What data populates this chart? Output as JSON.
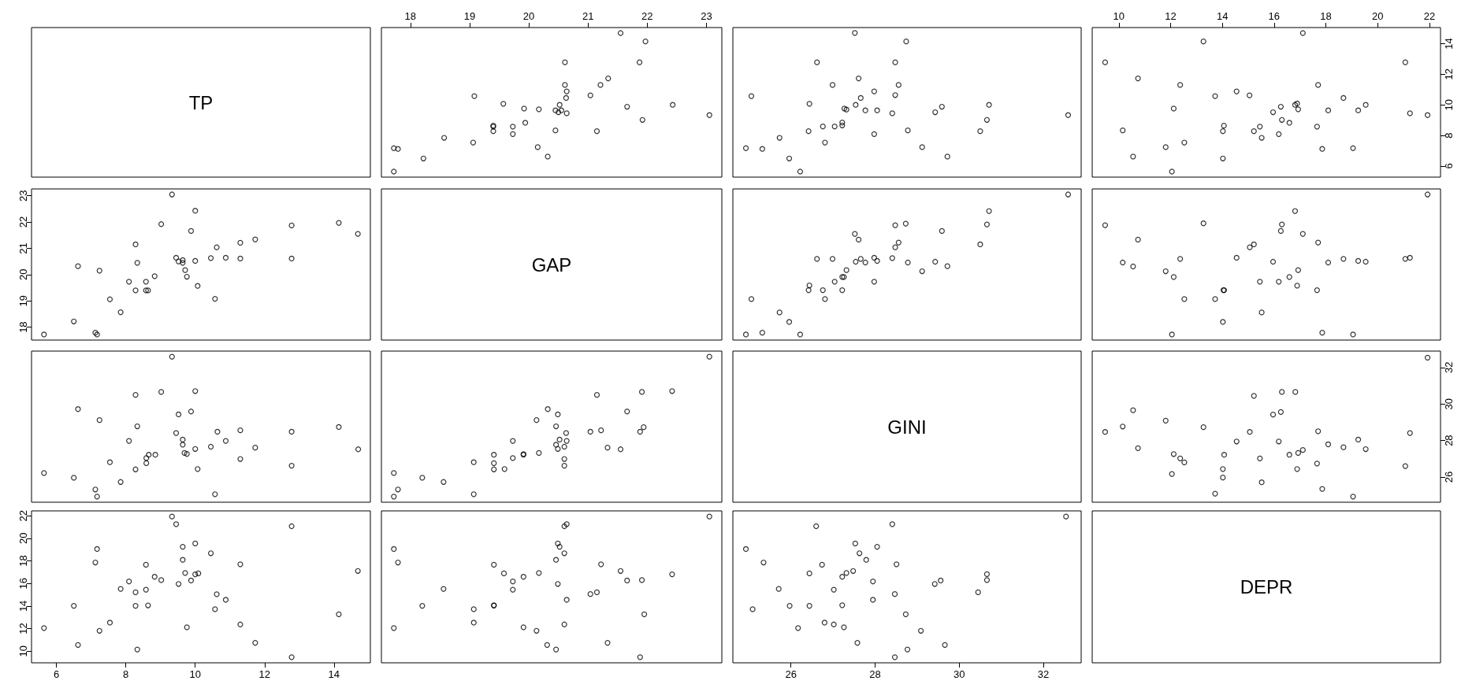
{
  "chart_data": [
    {
      "type": "other",
      "title": "TP"
    },
    {
      "type": "scatter",
      "xlim": [
        17.51,
        23.26
      ],
      "xticks": [
        18,
        19,
        20,
        21,
        22,
        23
      ],
      "ylim": [
        5.28,
        15.05
      ],
      "tick_labels": "x",
      "marker": "circle",
      "series": [
        {
          "color": "#000000",
          "x": [
            21.55,
            21.97,
            20.61,
            21.87,
            21.34,
            20.61,
            21.21,
            20.64,
            19.08,
            21.04,
            20.63,
            19.57,
            20.52,
            22.43,
            19.92,
            20.17,
            21.66,
            20.45,
            20.55,
            20.5,
            20.64,
            23.05,
            21.92,
            19.94,
            19.4,
            19.4,
            19.4,
            19.73,
            19.73,
            20.45,
            21.15,
            18.57,
            19.06,
            17.72,
            17.79,
            20.15,
            18.22,
            20.32,
            17.72
          ],
          "values": [
            14.69,
            14.14,
            12.78,
            12.78,
            11.73,
            11.3,
            11.3,
            10.88,
            10.57,
            10.62,
            10.45,
            10.07,
            10,
            10,
            9.76,
            9.71,
            9.88,
            9.64,
            9.64,
            9.52,
            9.45,
            9.33,
            9.02,
            8.83,
            8.64,
            8.58,
            8.28,
            8.58,
            8.09,
            8.33,
            8.28,
            7.85,
            7.54,
            7.17,
            7.12,
            7.24,
            6.5,
            6.62,
            5.64
          ]
        }
      ]
    },
    {
      "type": "scatter",
      "xlim": [
        24.62,
        32.9
      ],
      "ylim": [
        5.28,
        15.05
      ],
      "tick_labels": false,
      "marker": "circle",
      "series": [
        {
          "color": "#000000",
          "x": [
            27.52,
            28.74,
            26.62,
            28.48,
            27.61,
            26.99,
            28.56,
            27.98,
            25.06,
            28.48,
            27.66,
            26.44,
            27.54,
            30.71,
            29.59,
            27.27,
            27.32,
            27.77,
            28.05,
            28.41,
            29.43,
            32.59,
            30.66,
            27.22,
            27.22,
            26.76,
            27.04,
            28.78,
            30.5,
            26.42,
            27.98,
            25.73,
            26.81,
            29.12,
            24.93,
            25.32,
            29.72,
            25.96,
            26.22
          ],
          "values": [
            14.7,
            14.14,
            12.78,
            12.78,
            11.73,
            11.3,
            11.3,
            10.88,
            10.57,
            10.64,
            10.45,
            10.07,
            10,
            10,
            9.88,
            9.76,
            9.69,
            9.64,
            9.64,
            9.45,
            9.52,
            9.33,
            9.02,
            8.85,
            8.66,
            8.59,
            8.59,
            8.33,
            8.28,
            8.28,
            8.09,
            7.85,
            7.54,
            7.24,
            7.17,
            7.12,
            6.62,
            6.5,
            5.64
          ]
        }
      ]
    },
    {
      "type": "scatter",
      "xlim": [
        8.97,
        22.43
      ],
      "xticks": [
        10,
        12,
        14,
        16,
        18,
        20,
        22
      ],
      "ylim": [
        5.28,
        15.05
      ],
      "yticks": [
        6,
        8,
        10,
        12,
        14
      ],
      "marker": "circle",
      "series": [
        {
          "color": "#000000",
          "x": [
            17.11,
            13.27,
            9.47,
            21.07,
            10.74,
            12.37,
            17.7,
            14.55,
            13.72,
            15.05,
            18.68,
            19.54,
            16.89,
            16.81,
            16.26,
            12.12,
            16.93,
            18.09,
            19.25,
            15.96,
            21.25,
            21.93,
            16.3,
            16.59,
            14.06,
            15.45,
            17.66,
            10.15,
            14.02,
            15.22,
            16.18,
            15.52,
            12.53,
            11.81,
            19.05,
            17.86,
            10.55,
            14.02,
            12.05
          ],
          "values": [
            14.69,
            14.14,
            12.78,
            12.78,
            11.73,
            11.3,
            11.3,
            10.88,
            10.57,
            10.62,
            10.45,
            10,
            10.09,
            10,
            9.88,
            9.76,
            9.71,
            9.64,
            9.64,
            9.52,
            9.45,
            9.33,
            9.02,
            8.83,
            8.64,
            8.58,
            8.58,
            8.33,
            8.28,
            8.28,
            8.09,
            7.85,
            7.54,
            7.24,
            7.17,
            7.12,
            6.62,
            6.5,
            5.64
          ]
        }
      ]
    },
    {
      "type": "scatter",
      "xlim": [
        5.28,
        15.05
      ],
      "ylim": [
        17.51,
        23.26
      ],
      "yticks": [
        18,
        19,
        20,
        21,
        22,
        23
      ],
      "tick_labels": "y",
      "marker": "circle",
      "series": [
        {
          "color": "#000000",
          "x": [
            14.69,
            14.14,
            12.78,
            12.78,
            11.73,
            11.3,
            11.3,
            10.88,
            10.57,
            10.62,
            10.45,
            10.07,
            10,
            10,
            9.76,
            9.71,
            9.88,
            9.64,
            9.64,
            9.52,
            9.45,
            9.33,
            9.02,
            8.83,
            8.64,
            8.58,
            8.28,
            8.58,
            8.09,
            8.33,
            8.28,
            7.85,
            7.54,
            7.17,
            7.12,
            7.24,
            6.5,
            6.62,
            5.64
          ],
          "values": [
            21.55,
            21.97,
            20.61,
            21.87,
            21.34,
            20.61,
            21.21,
            20.64,
            19.08,
            21.04,
            20.63,
            19.57,
            20.52,
            22.43,
            19.92,
            20.17,
            21.66,
            20.45,
            20.55,
            20.5,
            20.64,
            23.05,
            21.92,
            19.94,
            19.4,
            19.4,
            19.4,
            19.73,
            19.73,
            20.45,
            21.15,
            18.57,
            19.06,
            17.72,
            17.79,
            20.15,
            18.22,
            20.32,
            17.72
          ]
        }
      ]
    },
    {
      "type": "other",
      "title": "GAP"
    },
    {
      "type": "scatter",
      "xlim": [
        24.62,
        32.9
      ],
      "ylim": [
        17.51,
        23.26
      ],
      "tick_labels": false,
      "marker": "circle",
      "series": [
        {
          "color": "#000000",
          "x": [
            32.59,
            30.71,
            30.66,
            28.73,
            28.48,
            29.59,
            27.52,
            27.61,
            30.5,
            28.56,
            28.48,
            26.62,
            26.99,
            27.98,
            27.66,
            28.41,
            28.05,
            27.54,
            27.77,
            28.78,
            29.43,
            29.72,
            29.12,
            27.32,
            27.22,
            27.26,
            27.98,
            27.04,
            26.44,
            26.42,
            26.76,
            27.22,
            26.81,
            25.06,
            25.73,
            25.96,
            24.93,
            25.32,
            26.22
          ],
          "values": [
            23.05,
            22.42,
            21.91,
            21.94,
            21.88,
            21.66,
            21.55,
            21.33,
            21.15,
            21.22,
            21.04,
            20.6,
            20.6,
            20.64,
            20.6,
            20.63,
            20.52,
            20.49,
            20.46,
            20.46,
            20.49,
            20.32,
            20.13,
            20.17,
            19.91,
            19.91,
            19.73,
            19.73,
            19.59,
            19.41,
            19.41,
            19.41,
            19.07,
            19.07,
            18.56,
            18.2,
            17.72,
            17.79,
            17.72
          ]
        }
      ]
    },
    {
      "type": "scatter",
      "xlim": [
        8.97,
        22.43
      ],
      "ylim": [
        17.51,
        23.26
      ],
      "tick_labels": false,
      "marker": "circle",
      "series": [
        {
          "color": "#000000",
          "x": [
            21.93,
            16.81,
            13.27,
            9.47,
            16.3,
            16.26,
            17.11,
            10.74,
            15.06,
            15.22,
            17.7,
            12.37,
            14.55,
            18.68,
            21.07,
            21.25,
            19.25,
            19.54,
            15.96,
            18.09,
            10.15,
            10.55,
            16.93,
            11.81,
            12.12,
            16.59,
            15.45,
            16.18,
            16.89,
            14.04,
            14.07,
            17.66,
            12.53,
            13.72,
            15.52,
            14.02,
            12.05,
            17.86,
            19.05
          ],
          "values": [
            23.05,
            22.42,
            21.95,
            21.88,
            21.91,
            21.66,
            21.55,
            21.33,
            21.04,
            21.15,
            21.22,
            20.6,
            20.64,
            20.6,
            20.6,
            20.64,
            20.52,
            20.49,
            20.49,
            20.46,
            20.46,
            20.31,
            20.17,
            20.13,
            19.91,
            19.91,
            19.73,
            19.73,
            19.58,
            19.41,
            19.41,
            19.41,
            19.07,
            19.07,
            18.56,
            18.2,
            17.72,
            17.79,
            17.72
          ]
        }
      ]
    },
    {
      "type": "scatter",
      "xlim": [
        5.28,
        15.05
      ],
      "ylim": [
        24.62,
        32.9
      ],
      "tick_labels": false,
      "marker": "circle",
      "series": [
        {
          "color": "#000000",
          "x": [
            14.7,
            14.14,
            12.78,
            12.78,
            11.73,
            11.3,
            11.3,
            10.88,
            10.57,
            10.64,
            10.45,
            10.07,
            10,
            10,
            9.88,
            9.76,
            9.69,
            9.64,
            9.64,
            9.45,
            9.52,
            9.33,
            9.02,
            8.85,
            8.66,
            8.59,
            8.59,
            8.33,
            8.28,
            8.28,
            8.09,
            7.85,
            7.54,
            7.24,
            7.17,
            7.12,
            6.62,
            6.5,
            5.64
          ],
          "values": [
            27.52,
            28.74,
            26.62,
            28.48,
            27.61,
            26.99,
            28.56,
            27.98,
            25.06,
            28.48,
            27.66,
            26.44,
            27.54,
            30.71,
            29.59,
            27.27,
            27.32,
            27.77,
            28.05,
            28.41,
            29.43,
            32.59,
            30.66,
            27.22,
            27.22,
            26.76,
            27.04,
            28.78,
            30.5,
            26.42,
            27.98,
            25.73,
            26.81,
            29.12,
            24.93,
            25.32,
            29.72,
            25.96,
            26.22
          ]
        }
      ]
    },
    {
      "type": "scatter",
      "xlim": [
        17.51,
        23.26
      ],
      "ylim": [
        24.62,
        32.9
      ],
      "tick_labels": false,
      "marker": "circle",
      "series": [
        {
          "color": "#000000",
          "x": [
            23.05,
            22.42,
            21.91,
            21.94,
            21.88,
            21.66,
            21.55,
            21.33,
            21.15,
            21.22,
            21.04,
            20.6,
            20.6,
            20.64,
            20.6,
            20.63,
            20.52,
            20.49,
            20.46,
            20.46,
            20.49,
            20.32,
            20.13,
            20.17,
            19.91,
            19.91,
            19.73,
            19.73,
            19.59,
            19.41,
            19.41,
            19.41,
            19.07,
            19.07,
            18.56,
            18.2,
            17.72,
            17.79,
            17.72
          ],
          "values": [
            32.59,
            30.71,
            30.66,
            28.73,
            28.48,
            29.59,
            27.52,
            27.61,
            30.5,
            28.56,
            28.48,
            26.62,
            26.99,
            27.98,
            27.66,
            28.41,
            28.05,
            27.54,
            27.77,
            28.78,
            29.43,
            29.72,
            29.12,
            27.32,
            27.22,
            27.26,
            27.98,
            27.04,
            26.44,
            26.42,
            26.76,
            27.22,
            26.81,
            25.06,
            25.73,
            25.96,
            24.93,
            25.32,
            26.22
          ]
        }
      ]
    },
    {
      "type": "other",
      "title": "GINI"
    },
    {
      "type": "scatter",
      "xlim": [
        8.97,
        22.43
      ],
      "ylim": [
        24.62,
        32.9
      ],
      "yticks": [
        26,
        28,
        30,
        32
      ],
      "tick_labels": "y",
      "marker": "circle",
      "series": [
        {
          "color": "#000000",
          "x": [
            21.93,
            15.22,
            16.3,
            16.82,
            10.55,
            15.96,
            16.26,
            11.81,
            9.47,
            10.15,
            13.27,
            15.06,
            17.7,
            21.25,
            14.55,
            16.18,
            19.25,
            18.09,
            10.74,
            18.68,
            19.54,
            17.11,
            16.93,
            16.59,
            12.12,
            14.07,
            12.37,
            12.53,
            15.45,
            17.66,
            21.07,
            14.02,
            16.89,
            12.05,
            14.02,
            15.52,
            17.86,
            13.72,
            19.05
          ],
          "values": [
            32.54,
            30.45,
            30.66,
            30.66,
            29.66,
            29.42,
            29.56,
            29.09,
            28.47,
            28.77,
            28.73,
            28.47,
            28.51,
            28.41,
            27.95,
            27.95,
            28.05,
            27.79,
            27.58,
            27.63,
            27.53,
            27.48,
            27.32,
            27.22,
            27.26,
            27.22,
            27.02,
            26.8,
            27.02,
            26.74,
            26.6,
            26.44,
            26.44,
            26.17,
            25.97,
            25.71,
            25.35,
            25.09,
            24.93
          ]
        }
      ]
    },
    {
      "type": "scatter",
      "xlim": [
        5.28,
        15.05
      ],
      "xticks": [
        6,
        8,
        10,
        12,
        14
      ],
      "ylim": [
        8.97,
        22.43
      ],
      "yticks": [
        10,
        12,
        14,
        16,
        18,
        20,
        22
      ],
      "marker": "circle",
      "series": [
        {
          "color": "#000000",
          "x": [
            14.69,
            14.14,
            12.78,
            12.78,
            11.73,
            11.3,
            11.3,
            10.88,
            10.57,
            10.62,
            10.45,
            10,
            10.09,
            10,
            9.88,
            9.76,
            9.71,
            9.64,
            9.64,
            9.52,
            9.45,
            9.33,
            9.02,
            8.83,
            8.64,
            8.58,
            8.58,
            8.33,
            8.28,
            8.28,
            8.09,
            7.85,
            7.54,
            7.24,
            7.17,
            7.12,
            6.62,
            6.5,
            5.64
          ],
          "values": [
            17.11,
            13.27,
            9.47,
            21.07,
            10.74,
            12.37,
            17.7,
            14.55,
            13.72,
            15.05,
            18.68,
            19.54,
            16.89,
            16.81,
            16.26,
            12.12,
            16.93,
            18.09,
            19.25,
            15.96,
            21.25,
            21.93,
            16.3,
            16.59,
            14.06,
            15.45,
            17.66,
            10.15,
            14.02,
            15.22,
            16.18,
            15.52,
            12.53,
            11.81,
            19.05,
            17.86,
            10.55,
            14.02,
            12.05
          ]
        }
      ]
    },
    {
      "type": "scatter",
      "xlim": [
        17.51,
        23.26
      ],
      "ylim": [
        8.97,
        22.43
      ],
      "tick_labels": false,
      "marker": "circle",
      "series": [
        {
          "color": "#000000",
          "x": [
            23.05,
            22.42,
            21.95,
            21.88,
            21.91,
            21.66,
            21.55,
            21.33,
            21.04,
            21.15,
            21.22,
            20.6,
            20.64,
            20.6,
            20.6,
            20.64,
            20.52,
            20.49,
            20.49,
            20.46,
            20.46,
            20.31,
            20.17,
            20.13,
            19.91,
            19.91,
            19.73,
            19.73,
            19.58,
            19.41,
            19.41,
            19.41,
            19.07,
            19.07,
            18.56,
            18.2,
            17.72,
            17.79,
            17.72
          ],
          "values": [
            21.93,
            16.81,
            13.27,
            9.47,
            16.3,
            16.26,
            17.11,
            10.74,
            15.06,
            15.22,
            17.7,
            12.37,
            14.55,
            18.68,
            21.07,
            21.25,
            19.25,
            19.54,
            15.96,
            18.09,
            10.15,
            10.55,
            16.93,
            11.81,
            12.12,
            16.59,
            15.45,
            16.18,
            16.89,
            14.04,
            14.07,
            17.66,
            12.53,
            13.72,
            15.52,
            14.02,
            12.05,
            17.86,
            19.05
          ]
        }
      ]
    },
    {
      "type": "scatter",
      "xlim": [
        24.62,
        32.9
      ],
      "xticks": [
        26,
        28,
        30,
        32
      ],
      "ylim": [
        8.97,
        22.43
      ],
      "tick_labels": "x",
      "marker": "circle",
      "series": [
        {
          "color": "#000000",
          "x": [
            32.54,
            30.45,
            30.66,
            30.66,
            29.66,
            29.42,
            29.56,
            29.09,
            28.47,
            28.77,
            28.73,
            28.47,
            28.51,
            28.41,
            27.95,
            27.95,
            28.05,
            27.79,
            27.58,
            27.63,
            27.53,
            27.48,
            27.32,
            27.22,
            27.26,
            27.22,
            27.02,
            26.8,
            27.02,
            26.74,
            26.6,
            26.44,
            26.44,
            26.17,
            25.97,
            25.71,
            25.35,
            25.09,
            24.93
          ],
          "values": [
            21.93,
            15.22,
            16.3,
            16.82,
            10.55,
            15.96,
            16.26,
            11.81,
            9.47,
            10.15,
            13.27,
            15.06,
            17.7,
            21.25,
            14.55,
            16.18,
            19.25,
            18.09,
            10.74,
            18.68,
            19.54,
            17.11,
            16.93,
            16.59,
            12.12,
            14.07,
            12.37,
            12.53,
            15.45,
            17.66,
            21.07,
            14.02,
            16.89,
            12.05,
            14.02,
            15.52,
            17.86,
            13.72,
            19.05
          ]
        }
      ]
    },
    {
      "type": "other",
      "title": "DEPR"
    }
  ]
}
